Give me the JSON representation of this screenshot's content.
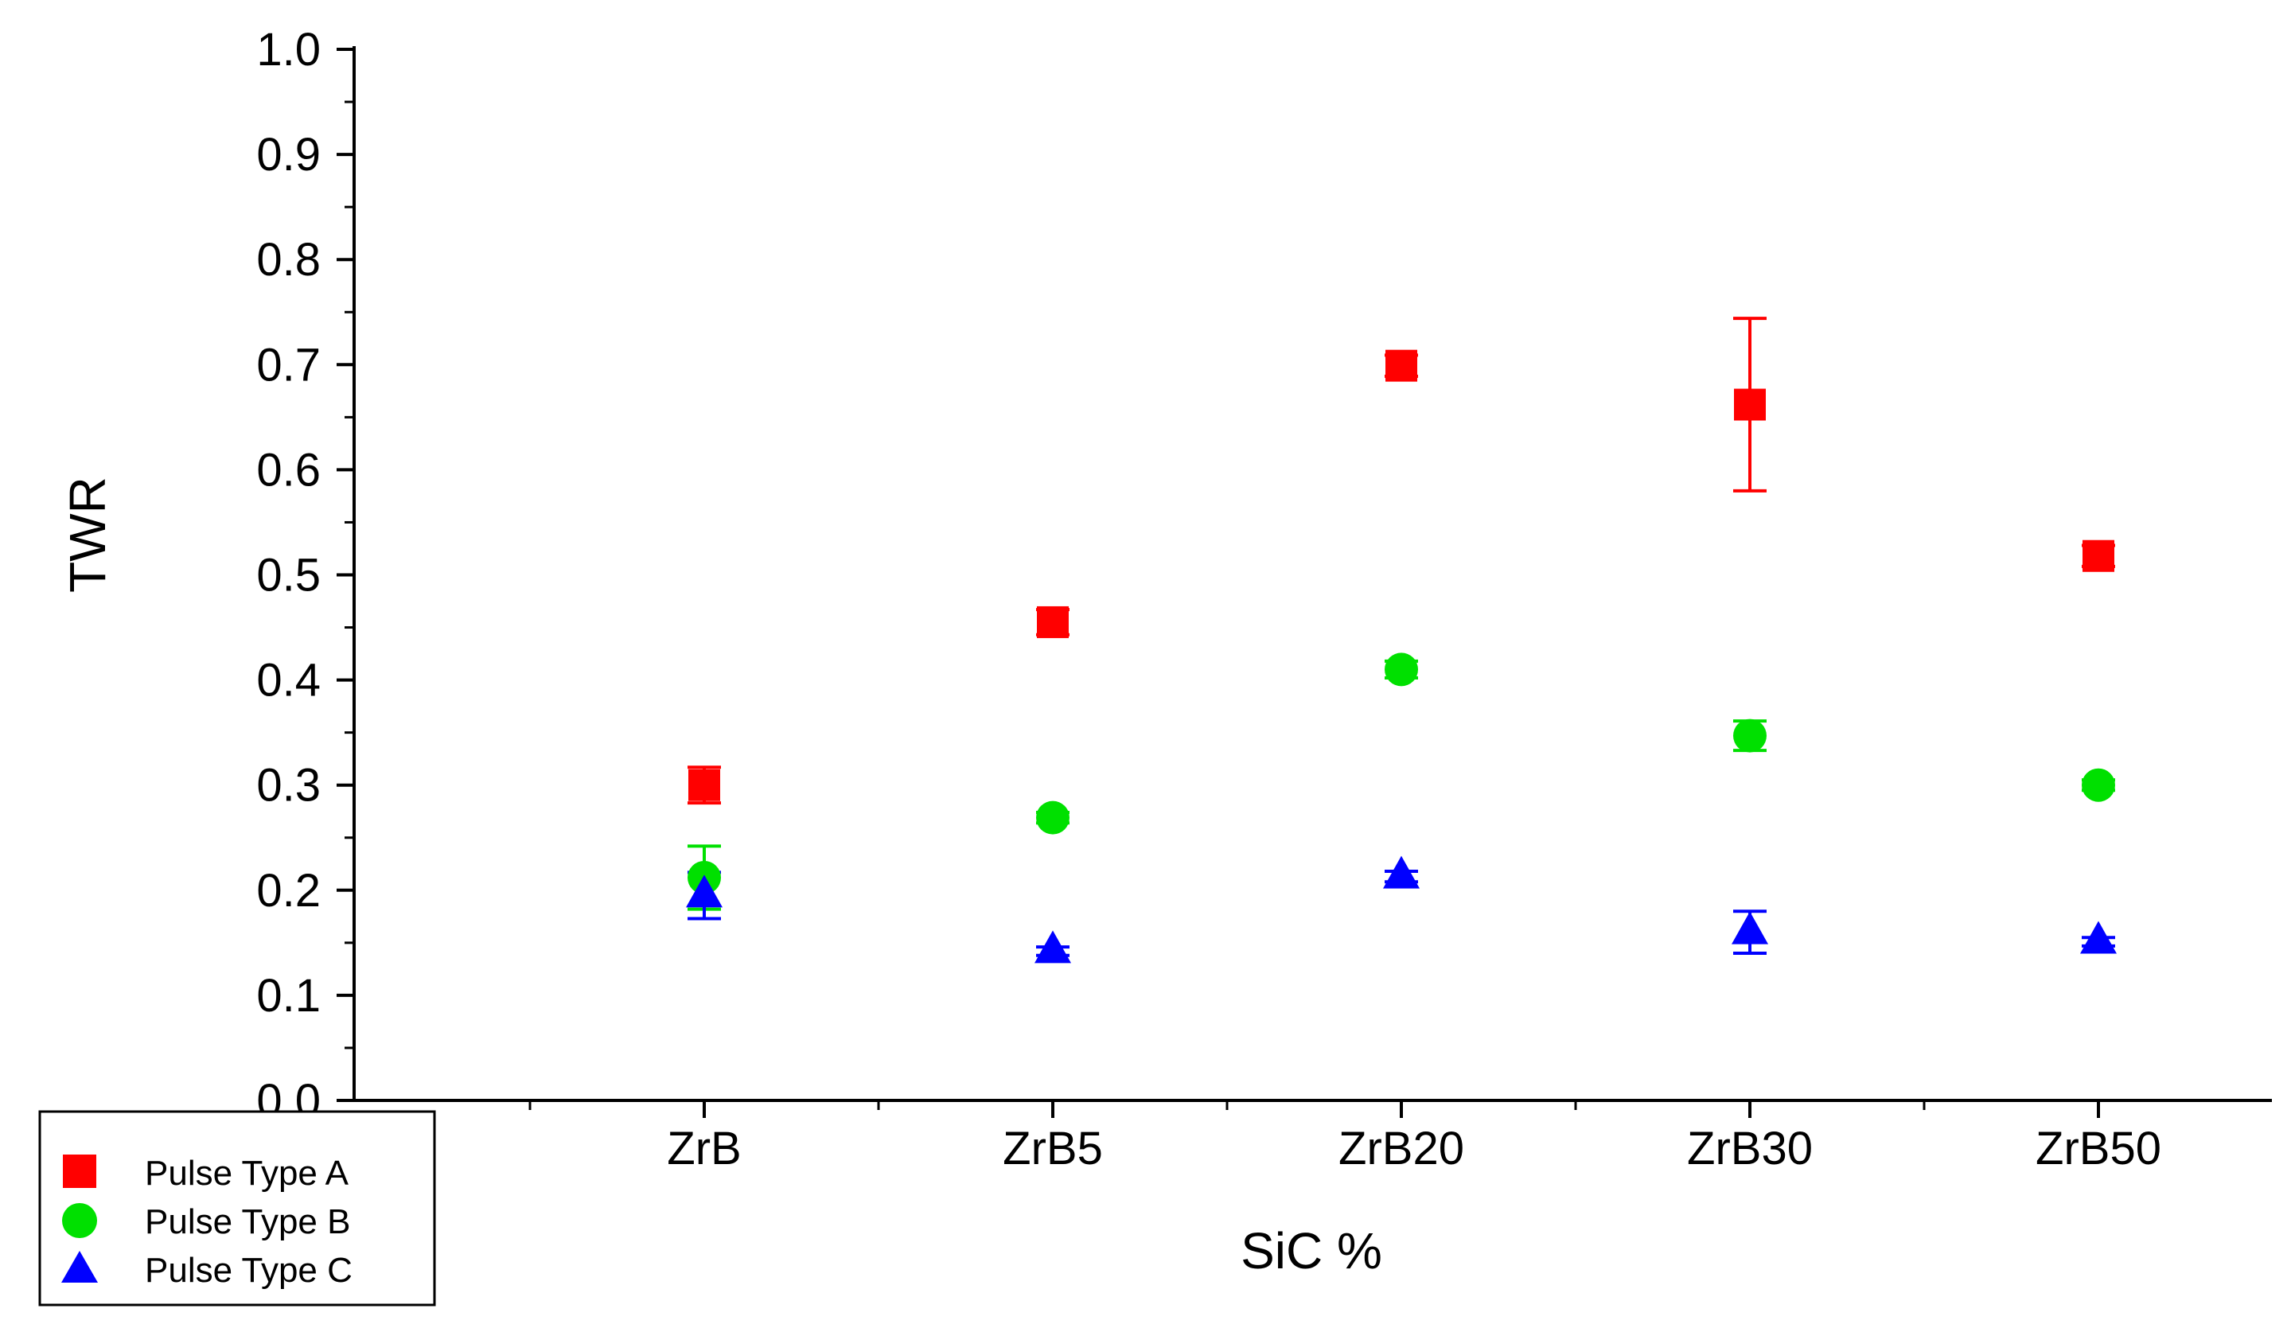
{
  "chart_data": {
    "type": "scatter",
    "xlabel": "SiC %",
    "ylabel": "TWR",
    "categories": [
      "ZrB",
      "ZrB5",
      "ZrB20",
      "ZrB30",
      "ZrB50"
    ],
    "ylim": [
      0.0,
      1.0
    ],
    "yticks": [
      "0.0",
      "0.1",
      "0.2",
      "0.3",
      "0.4",
      "0.5",
      "0.6",
      "0.7",
      "0.8",
      "0.9",
      "1.0"
    ],
    "grid": false,
    "legend_position": "bottom-left",
    "series": [
      {
        "name": "Pulse Type A",
        "marker": "square",
        "color": "#ff0000",
        "values": [
          0.3,
          0.455,
          0.699,
          0.662,
          0.518
        ],
        "errors": [
          0.017,
          0.012,
          0.01,
          0.082,
          0.01
        ]
      },
      {
        "name": "Pulse Type B",
        "marker": "circle",
        "color": "#00e000",
        "values": [
          0.212,
          0.269,
          0.41,
          0.347,
          0.3
        ],
        "errors": [
          0.03,
          0.005,
          0.008,
          0.014,
          0.005
        ]
      },
      {
        "name": "Pulse Type C",
        "marker": "triangle",
        "color": "#0000ff",
        "values": [
          0.195,
          0.142,
          0.213,
          0.16,
          0.151
        ],
        "errors": [
          0.022,
          0.004,
          0.005,
          0.02,
          0.004
        ]
      }
    ]
  }
}
